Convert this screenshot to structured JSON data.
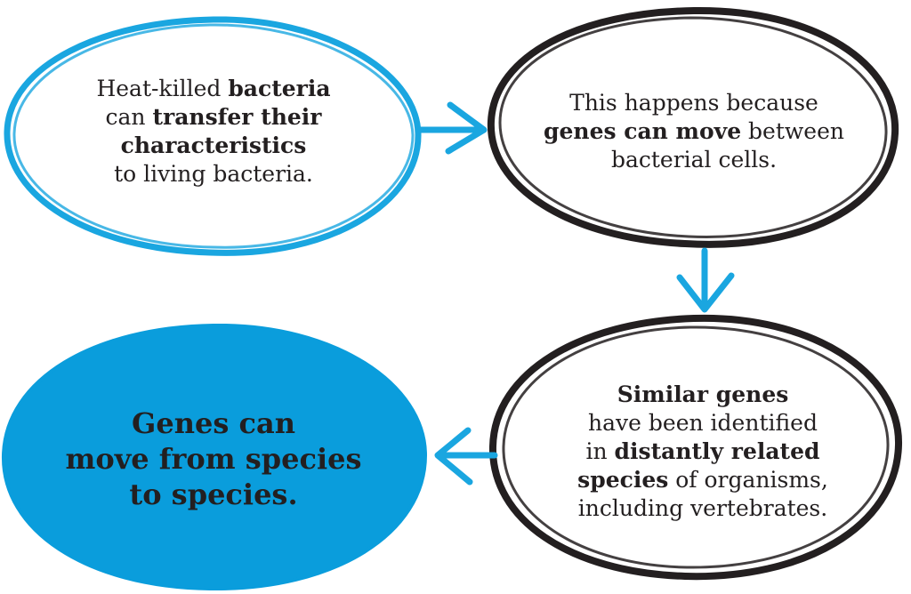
{
  "diagram": {
    "colors": {
      "blue": "#1aa6e0",
      "blue_fill": "#0a9ddc",
      "black": "#231f20",
      "text": "#231f20"
    },
    "nodes": [
      {
        "id": "heat-killed",
        "outline": "blue",
        "lines": [
          [
            {
              "t": "Heat-killed "
            },
            {
              "t": "bacteria",
              "b": true
            }
          ],
          [
            {
              "t": "can "
            },
            {
              "t": "transfer their",
              "b": true
            }
          ],
          [
            {
              "t": "characteristics",
              "b": true
            }
          ],
          [
            {
              "t": "to living bacteria."
            }
          ]
        ]
      },
      {
        "id": "genes-move",
        "outline": "black",
        "lines": [
          [
            {
              "t": "This happens because"
            }
          ],
          [
            {
              "t": "genes can move",
              "b": true
            },
            {
              "t": " between"
            }
          ],
          [
            {
              "t": "bacterial cells."
            }
          ]
        ]
      },
      {
        "id": "similar-genes",
        "outline": "black",
        "lines": [
          [
            {
              "t": "Similar genes",
              "b": true
            }
          ],
          [
            {
              "t": "have been identified"
            }
          ],
          [
            {
              "t": "in "
            },
            {
              "t": "distantly related",
              "b": true
            }
          ],
          [
            {
              "t": "species",
              "b": true
            },
            {
              "t": " of organisms,"
            }
          ],
          [
            {
              "t": "including vertebrates."
            }
          ]
        ]
      },
      {
        "id": "conclusion",
        "outline": "filled-blue",
        "lines": [
          [
            {
              "t": "Genes can",
              "b": true
            }
          ],
          [
            {
              "t": "move from species",
              "b": true
            }
          ],
          [
            {
              "t": "to species.",
              "b": true
            }
          ]
        ]
      }
    ],
    "edges": [
      {
        "from": "heat-killed",
        "to": "genes-move",
        "direction": "right",
        "color": "blue"
      },
      {
        "from": "genes-move",
        "to": "similar-genes",
        "direction": "down",
        "color": "blue"
      },
      {
        "from": "similar-genes",
        "to": "conclusion",
        "direction": "left",
        "color": "blue"
      }
    ]
  }
}
